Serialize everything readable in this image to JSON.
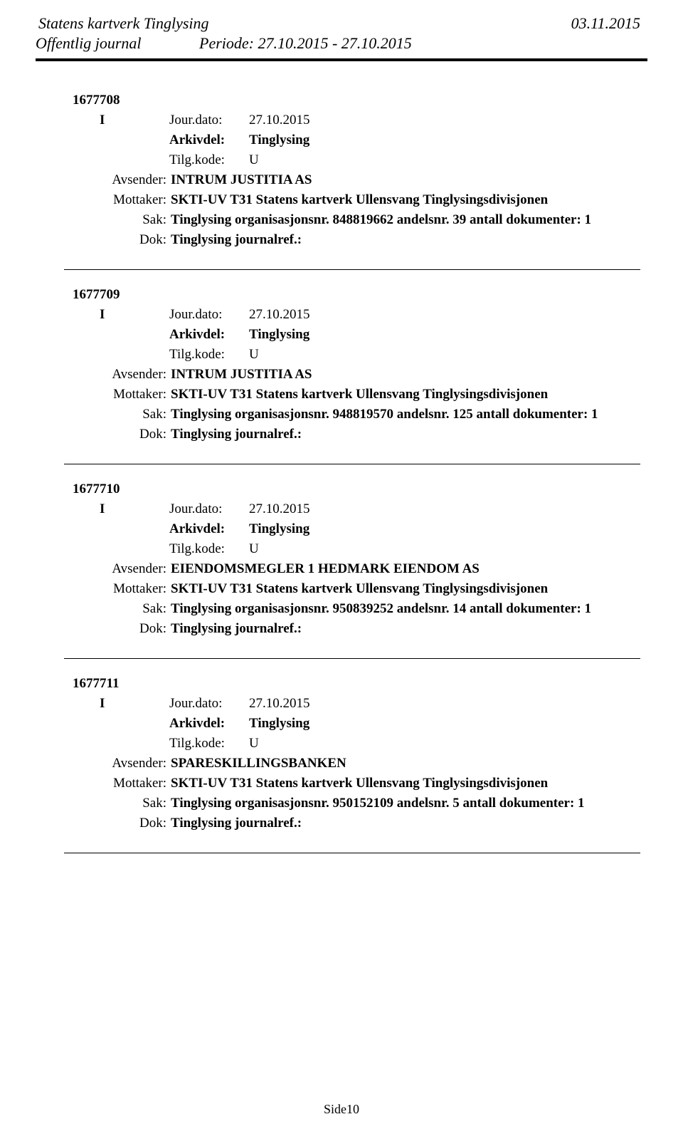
{
  "header": {
    "org": "Statens kartverk Tinglysing",
    "date": "03.11.2015",
    "journal": "Offentlig journal",
    "period": "Periode: 27.10.2015 - 27.10.2015"
  },
  "labels": {
    "jourdato": "Jour.dato:",
    "arkivdel": "Arkivdel:",
    "tilgkode": "Tilg.kode:",
    "avsender": "Avsender:",
    "mottaker": "Mottaker:",
    "sak": "Sak:",
    "dok": "Dok:"
  },
  "entries": [
    {
      "id": "1677708",
      "type": "I",
      "jourdato": "27.10.2015",
      "arkivdel": "Tinglysing",
      "tilgkode": "U",
      "avsender": "INTRUM JUSTITIA AS",
      "mottaker": "SKTI-UV T31 Statens kartverk Ullensvang Tinglysingsdivisjonen",
      "sak": "Tinglysing organisasjonsnr. 848819662 andelsnr. 39 antall dokumenter: 1",
      "dok": "Tinglysing journalref.:"
    },
    {
      "id": "1677709",
      "type": "I",
      "jourdato": "27.10.2015",
      "arkivdel": "Tinglysing",
      "tilgkode": "U",
      "avsender": "INTRUM JUSTITIA AS",
      "mottaker": "SKTI-UV T31 Statens kartverk Ullensvang Tinglysingsdivisjonen",
      "sak": "Tinglysing organisasjonsnr. 948819570 andelsnr. 125 antall dokumenter: 1",
      "dok": "Tinglysing journalref.:"
    },
    {
      "id": "1677710",
      "type": "I",
      "jourdato": "27.10.2015",
      "arkivdel": "Tinglysing",
      "tilgkode": "U",
      "avsender": "EIENDOMSMEGLER 1 HEDMARK EIENDOM AS",
      "mottaker": "SKTI-UV T31 Statens kartverk Ullensvang Tinglysingsdivisjonen",
      "sak": "Tinglysing organisasjonsnr. 950839252 andelsnr. 14 antall dokumenter: 1",
      "dok": "Tinglysing journalref.:"
    },
    {
      "id": "1677711",
      "type": "I",
      "jourdato": "27.10.2015",
      "arkivdel": "Tinglysing",
      "tilgkode": "U",
      "avsender": "SPARESKILLINGSBANKEN",
      "mottaker": "SKTI-UV T31 Statens kartverk Ullensvang Tinglysingsdivisjonen",
      "sak": "Tinglysing organisasjonsnr. 950152109 andelsnr. 5 antall dokumenter: 1",
      "dok": "Tinglysing journalref.:"
    }
  ],
  "footer": "Side10"
}
